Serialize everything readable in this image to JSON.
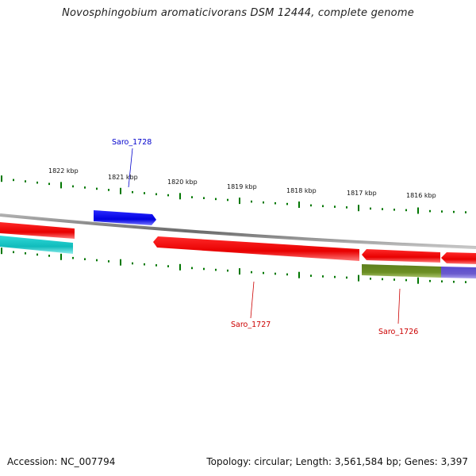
{
  "title": "Novosphingobium aromaticivorans DSM 12444, complete genome",
  "scale_labels": [
    "1822 kbp",
    "1821 kbp",
    "1820 kbp",
    "1819 kbp",
    "1818 kbp",
    "1817 kbp",
    "1816 kbp"
  ],
  "genes": [
    {
      "name": "Saro_1728",
      "color": "#0000cc"
    },
    {
      "name": "Saro_1727",
      "color": "#cc0000"
    },
    {
      "name": "Saro_1726",
      "color": "#cc0000"
    }
  ],
  "colors": {
    "backbone": "#888888",
    "ticks": "#007700",
    "red_feature": "#ee0000",
    "blue_feature": "#0000ee",
    "cyan_feature": "#22cccc",
    "olive_feature": "#6b8e23",
    "purple_feature": "#6a5acd"
  },
  "footer": {
    "accession": "Accession: NC_007794",
    "summary": "Topology: circular; Length: 3,561,584 bp; Genes: 3,397"
  }
}
